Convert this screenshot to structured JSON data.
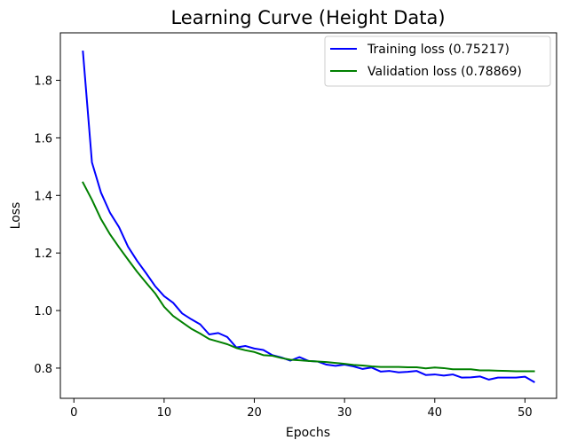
{
  "chart_data": {
    "type": "line",
    "title": "Learning Curve (Height Data)",
    "xlabel": "Epochs",
    "ylabel": "Loss",
    "xlim": [
      -1.5,
      53.5
    ],
    "ylim": [
      0.695,
      1.965
    ],
    "xticks": [
      0,
      10,
      20,
      30,
      40,
      50
    ],
    "yticks": [
      0.8,
      1.0,
      1.2,
      1.4,
      1.6,
      1.8
    ],
    "xtick_labels": [
      "0",
      "10",
      "20",
      "30",
      "40",
      "50"
    ],
    "ytick_labels": [
      "0.8",
      "1.0",
      "1.2",
      "1.4",
      "1.6",
      "1.8"
    ],
    "legend_position": "top-right",
    "x": [
      1,
      2,
      3,
      4,
      5,
      6,
      7,
      8,
      9,
      10,
      11,
      12,
      13,
      14,
      15,
      16,
      17,
      18,
      19,
      20,
      21,
      22,
      23,
      24,
      25,
      26,
      27,
      28,
      29,
      30,
      31,
      32,
      33,
      34,
      35,
      36,
      37,
      38,
      39,
      40,
      41,
      42,
      43,
      44,
      45,
      46,
      47,
      48,
      49,
      50,
      51
    ],
    "series": [
      {
        "name": "Training loss",
        "legend_label": "Training loss (0.75217)",
        "color": "#0000ff",
        "values": [
          1.9,
          1.515,
          1.41,
          1.34,
          1.29,
          1.222,
          1.173,
          1.13,
          1.085,
          1.05,
          1.027,
          0.99,
          0.97,
          0.952,
          0.917,
          0.922,
          0.908,
          0.872,
          0.877,
          0.868,
          0.863,
          0.845,
          0.837,
          0.826,
          0.838,
          0.825,
          0.823,
          0.812,
          0.808,
          0.812,
          0.806,
          0.797,
          0.802,
          0.788,
          0.79,
          0.785,
          0.787,
          0.79,
          0.776,
          0.778,
          0.774,
          0.778,
          0.767,
          0.768,
          0.771,
          0.76,
          0.767,
          0.767,
          0.767,
          0.77,
          0.752
        ]
      },
      {
        "name": "Validation loss",
        "legend_label": "Validation loss (0.78869)",
        "color": "#008000",
        "values": [
          1.445,
          1.385,
          1.318,
          1.265,
          1.22,
          1.177,
          1.135,
          1.097,
          1.06,
          1.013,
          0.981,
          0.959,
          0.937,
          0.92,
          0.901,
          0.892,
          0.883,
          0.87,
          0.862,
          0.856,
          0.845,
          0.843,
          0.835,
          0.829,
          0.827,
          0.825,
          0.823,
          0.821,
          0.818,
          0.815,
          0.811,
          0.809,
          0.806,
          0.804,
          0.804,
          0.804,
          0.803,
          0.803,
          0.799,
          0.802,
          0.8,
          0.796,
          0.796,
          0.796,
          0.792,
          0.792,
          0.791,
          0.79,
          0.789,
          0.789,
          0.789
        ]
      }
    ]
  }
}
